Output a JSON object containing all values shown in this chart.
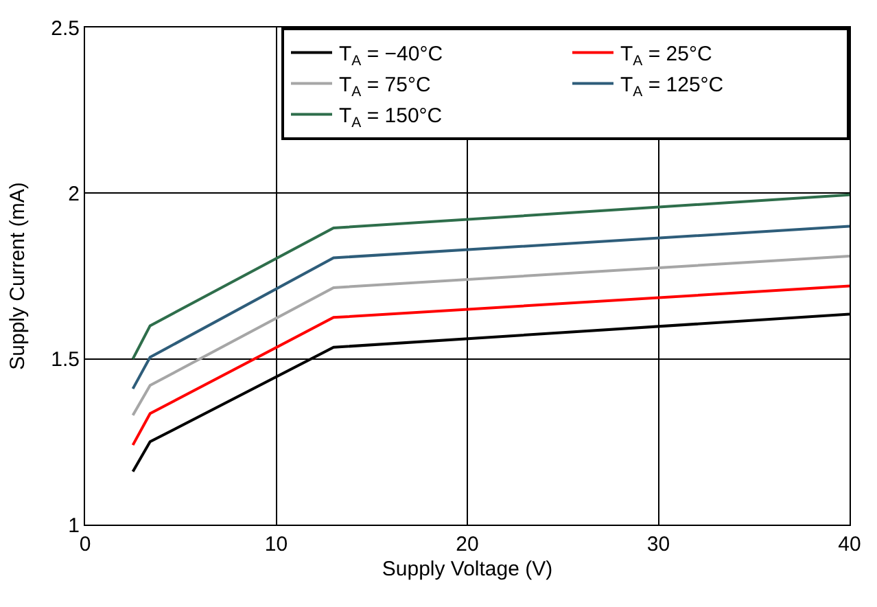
{
  "chart_data": {
    "type": "line",
    "xlabel": "Supply Voltage (V)",
    "ylabel": "Supply Current (mA)",
    "x": [
      2.5,
      3.4,
      13,
      40
    ],
    "xlim": [
      0,
      40
    ],
    "xticks": [
      0,
      10,
      20,
      30,
      40
    ],
    "ylim": [
      1,
      2.5
    ],
    "yticks": [
      1,
      1.5,
      2,
      2.5
    ],
    "grid": true,
    "legend": "top right",
    "line_style": "solid",
    "marker": "none",
    "series": [
      {
        "name": "T$_{A}$ = −40°C",
        "color": "#000000",
        "values": [
          1.16,
          1.25,
          1.535,
          1.635
        ]
      },
      {
        "name": "T$_{A}$ = 25°C",
        "color": "#ff0000",
        "values": [
          1.24,
          1.335,
          1.625,
          1.72
        ]
      },
      {
        "name": "T$_{A}$ = 75°C",
        "color": "#a6a6a6",
        "values": [
          1.33,
          1.42,
          1.715,
          1.81
        ]
      },
      {
        "name": "T$_{A}$ = 125°C",
        "color": "#2e5d7a",
        "values": [
          1.41,
          1.505,
          1.805,
          1.9
        ]
      },
      {
        "name": "T$_{A}$ = 150°C",
        "color": "#2e6e4b",
        "values": [
          1.5,
          1.6,
          1.895,
          1.995
        ]
      }
    ]
  }
}
